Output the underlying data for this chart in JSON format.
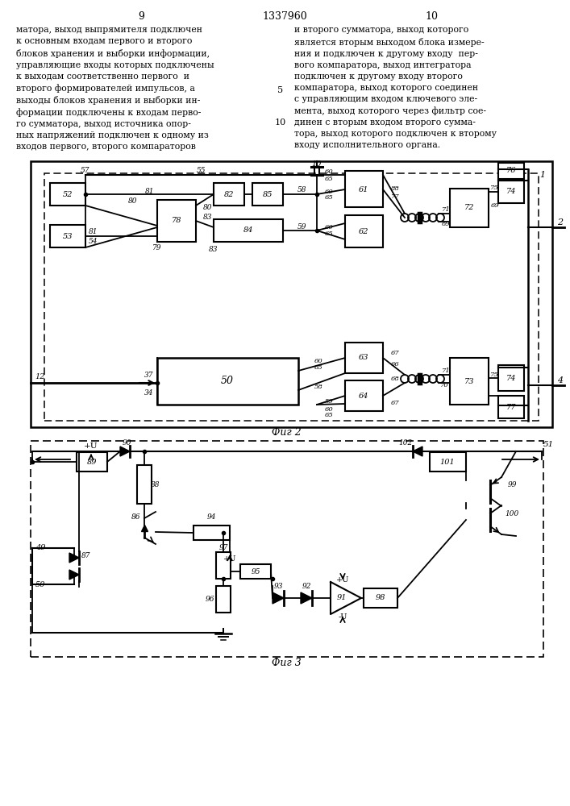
{
  "page_title": "1337960",
  "page_left": "9",
  "page_right": "10",
  "text_left": "матора, выход выпрямителя подключен\nк основным входам первого и второго\nблоков хранения и выборки информации,\nуправляющие входы которых подключены\nк выходам соответственно первого  и\nвторого формирователей импульсов, а\nвыходы блоков хранения и выборки ин-\nформации подключены к входам перво-\nго сумматора, выход источника опор-\nных напряжений подключен к одному из\nвходов первого, второго компараторов",
  "text_right": "и второго сумматора, выход которого\nявляется вторым выходом блока измере-\nния и подключен к другому входу  пер-\nвого компаратора, выход интегратора\nподключен к другому входу второго\nкомпаратора, выход которого соединен\nс управляющим входом ключевого эле-\nмента, выход которого через фильтр сое-\nдинен с вторым входом второго сумма-\nтора, выход которого подключен к второму\nвходу исполнительного органа.",
  "line_nums": [
    [
      5,
      128
    ],
    [
      10,
      100
    ]
  ],
  "bg_color": "#ffffff",
  "line_color": "#000000",
  "text_color": "#000000"
}
